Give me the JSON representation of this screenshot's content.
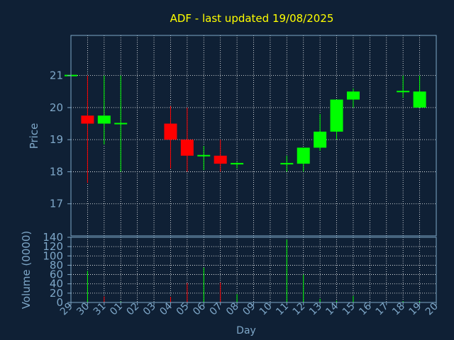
{
  "chart_data": [
    {
      "type": "candlestick",
      "title": "ADF - last updated 19/08/2025",
      "xlabel": "Day",
      "ylabel": "Price",
      "ylim": [
        16,
        22.25
      ],
      "yticks": [
        17,
        18,
        19,
        20,
        21
      ],
      "grid": true,
      "categories": [
        "29",
        "30",
        "31",
        "01",
        "02",
        "03",
        "04",
        "05",
        "06",
        "07",
        "08",
        "09",
        "10",
        "11",
        "12",
        "13",
        "14",
        "15",
        "16",
        "17",
        "18",
        "19",
        "20"
      ],
      "candles": [
        {
          "x": "29",
          "open": 21,
          "high": 21,
          "low": 21,
          "close": 21
        },
        {
          "x": "30",
          "open": 19.75,
          "high": 21,
          "low": 17.65,
          "close": 19.5
        },
        {
          "x": "31",
          "open": 19.5,
          "high": 21,
          "low": 18.85,
          "close": 19.75
        },
        {
          "x": "01",
          "open": 19.5,
          "high": 21,
          "low": 18,
          "close": 19.5
        },
        {
          "x": "04",
          "open": 19.5,
          "high": 20.05,
          "low": 18.1,
          "close": 19
        },
        {
          "x": "05",
          "open": 19,
          "high": 20,
          "low": 18,
          "close": 18.5
        },
        {
          "x": "06",
          "open": 18.5,
          "high": 18.8,
          "low": 18.05,
          "close": 18.5
        },
        {
          "x": "07",
          "open": 18.5,
          "high": 19,
          "low": 18,
          "close": 18.25
        },
        {
          "x": "08",
          "open": 18.25,
          "high": 18.3,
          "low": 18.1,
          "close": 18.25
        },
        {
          "x": "11",
          "open": 18.25,
          "high": 18.5,
          "low": 18,
          "close": 18.25
        },
        {
          "x": "12",
          "open": 18.25,
          "high": 18.75,
          "low": 18,
          "close": 18.75
        },
        {
          "x": "13",
          "open": 18.75,
          "high": 19.8,
          "low": 18.65,
          "close": 19.25
        },
        {
          "x": "14",
          "open": 19.25,
          "high": 20.25,
          "low": 19,
          "close": 20.25
        },
        {
          "x": "15",
          "open": 20.25,
          "high": 20.6,
          "low": 20,
          "close": 20.5
        },
        {
          "x": "18",
          "open": 20.5,
          "high": 21,
          "low": 20.3,
          "close": 20.5
        },
        {
          "x": "19",
          "open": 20,
          "high": 21,
          "low": 20,
          "close": 20.5
        }
      ]
    },
    {
      "type": "bar",
      "xlabel": "Day",
      "ylabel": "Volume (0000)",
      "ylim": [
        0,
        140
      ],
      "yticks": [
        0,
        20,
        40,
        60,
        80,
        100,
        120,
        140
      ],
      "grid": true,
      "volumes": [
        {
          "x": "29",
          "value": 1,
          "color": "#00ff00"
        },
        {
          "x": "30",
          "value": 68,
          "color": "#00ff00"
        },
        {
          "x": "31",
          "value": 13,
          "color": "#ff0000"
        },
        {
          "x": "01",
          "value": 2,
          "color": "#00ff00"
        },
        {
          "x": "04",
          "value": 12,
          "color": "#ff0000"
        },
        {
          "x": "05",
          "value": 42,
          "color": "#ff0000"
        },
        {
          "x": "06",
          "value": 75,
          "color": "#00ff00"
        },
        {
          "x": "07",
          "value": 43,
          "color": "#ff0000"
        },
        {
          "x": "08",
          "value": 18,
          "color": "#00ff00"
        },
        {
          "x": "11",
          "value": 135,
          "color": "#00ff00"
        },
        {
          "x": "12",
          "value": 60,
          "color": "#00ff00"
        },
        {
          "x": "13",
          "value": 8,
          "color": "#00ff00"
        },
        {
          "x": "14",
          "value": 4,
          "color": "#00ff00"
        },
        {
          "x": "15",
          "value": 14,
          "color": "#00ff00"
        },
        {
          "x": "18",
          "value": 3,
          "color": "#00ff00"
        },
        {
          "x": "19",
          "value": 3,
          "color": "#00ff00"
        }
      ]
    }
  ],
  "colors": {
    "background": "#0f2035",
    "axis": "#7ea7c8",
    "grid": "#ffffff",
    "title": "#ffff00",
    "up": "#00ff00",
    "down": "#ff0000"
  }
}
